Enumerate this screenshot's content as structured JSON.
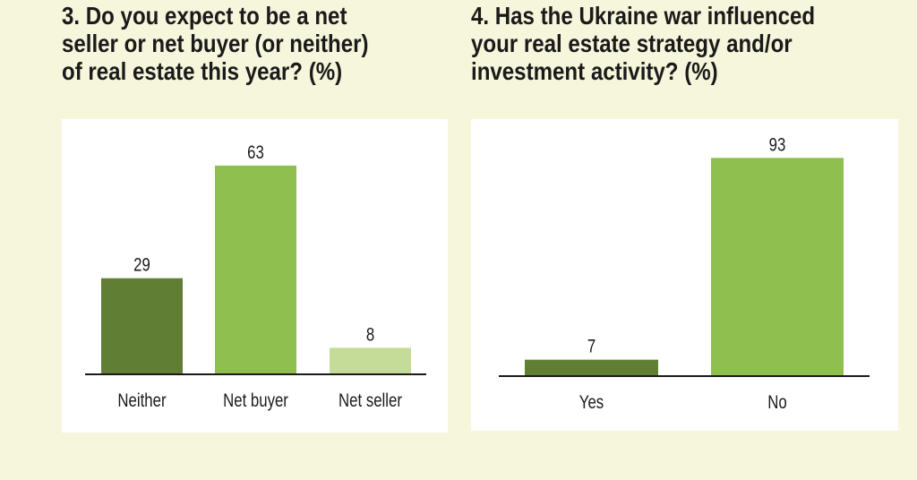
{
  "chart_data": [
    {
      "type": "bar",
      "title_lines": [
        "3. Do you expect to be a net",
        "seller or net buyer (or neither)",
        "of real estate this year? (%)"
      ],
      "categories": [
        "Neither",
        "Net buyer",
        "Net seller"
      ],
      "values": [
        29,
        63,
        8
      ],
      "colors": [
        "#607f35",
        "#8fbf4f",
        "#c4dc97"
      ],
      "ylim": [
        0,
        70
      ],
      "grid": false
    },
    {
      "type": "bar",
      "title_lines": [
        "4. Has the Ukraine war influenced",
        "your real estate strategy and/or",
        "investment activity? (%)"
      ],
      "categories": [
        "Yes",
        "No"
      ],
      "values": [
        7,
        93
      ],
      "colors": [
        "#607f35",
        "#8fbf4f"
      ],
      "ylim": [
        0,
        100
      ],
      "grid": false
    }
  ]
}
